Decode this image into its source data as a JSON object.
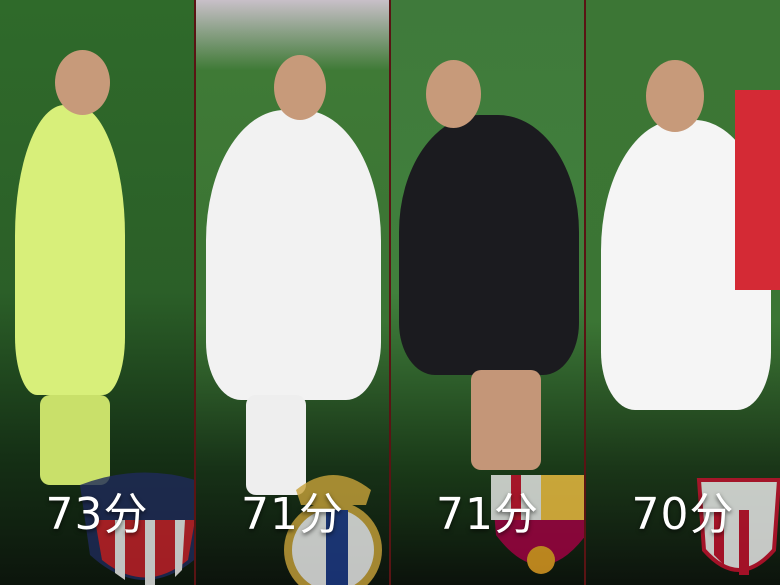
{
  "panels": [
    {
      "score": "73分",
      "team_crest": "atletico-madrid-crest",
      "kit_color": "#d8ef7a"
    },
    {
      "score": "71分",
      "team_crest": "real-madrid-crest",
      "kit_color": "#f2f2f2"
    },
    {
      "score": "71分",
      "team_crest": "fc-barcelona-crest",
      "kit_color": "#1b1b1f"
    },
    {
      "score": "70分",
      "team_crest": "sevilla-crest",
      "kit_color": "#f5f5f5"
    }
  ]
}
